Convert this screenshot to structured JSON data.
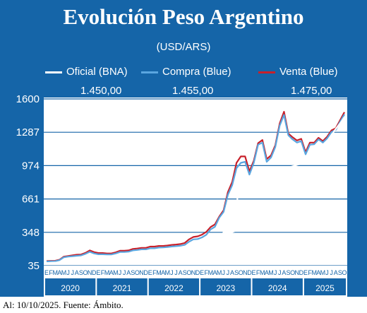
{
  "colors": {
    "background": "#1565a8",
    "oficial": "#ffffff",
    "compra": "#5aa6e0",
    "venta": "#c8202a",
    "years_band": "#1565a8"
  },
  "header": {
    "title": "Evolución Peso Argentino",
    "subtitle": "(USD/ARS)"
  },
  "footer": {
    "source": "Al: 10/10/2025. Fuente: Ámbito."
  },
  "chart_data": {
    "type": "line",
    "title": "Evolución Peso Argentino",
    "subtitle": "(USD/ARS)",
    "ylim": [
      35,
      1600
    ],
    "yticks": [
      35,
      348,
      661,
      974,
      1287,
      1600
    ],
    "grid": true,
    "legend_position": "top",
    "months": [
      "E",
      "F",
      "M",
      "A",
      "M",
      "J",
      "J",
      "A",
      "S",
      "O",
      "N",
      "D"
    ],
    "last_month_index": 69,
    "years": [
      "2020",
      "2021",
      "2022",
      "2023",
      "2024",
      "2025"
    ],
    "annotations": [
      {
        "text": "1.450,00",
        "x": 40
      },
      {
        "text": "1.455,00",
        "x": 52
      },
      {
        "text": "1.475,00",
        "x": 68
      }
    ],
    "series": [
      {
        "name": "Oficial (BNA)",
        "x": [
          0,
          2,
          4,
          6,
          8,
          10,
          12,
          14,
          16,
          18,
          20,
          22,
          24,
          26,
          28,
          30,
          32,
          34,
          36,
          38,
          40,
          41,
          42,
          43,
          44,
          44.3,
          46,
          48,
          50,
          52,
          54,
          56,
          58,
          60,
          61,
          62,
          63,
          64,
          65,
          66,
          67,
          68,
          69
        ],
        "values": [
          60,
          64,
          67,
          73,
          77,
          81,
          87,
          92,
          96,
          99,
          102,
          105,
          108,
          114,
          120,
          128,
          141,
          160,
          182,
          213,
          268,
          350,
          350,
          350,
          365,
          800,
          830,
          855,
          880,
          905,
          930,
          955,
          980,
          1005,
          1030,
          1060,
          1080,
          1130,
          1190,
          1260,
          1320,
          1370,
          1430
        ]
      },
      {
        "name": "Compra (Blue)",
        "x": [
          0,
          1,
          2,
          3,
          4,
          5,
          6,
          7,
          8,
          9,
          10,
          11,
          12,
          13,
          14,
          15,
          16,
          17,
          18,
          19,
          20,
          21,
          22,
          23,
          24,
          25,
          26,
          27,
          28,
          29,
          30,
          31,
          32,
          33,
          34,
          35,
          36,
          37,
          38,
          39,
          40,
          41,
          42,
          43,
          44,
          45,
          46,
          47,
          48,
          49,
          50,
          51,
          52,
          53,
          54,
          55,
          56,
          57,
          58,
          59,
          60,
          61,
          62,
          63,
          64,
          65,
          66,
          67,
          68,
          69
        ],
        "values": [
          74,
          76,
          77,
          87,
          114,
          120,
          124,
          128,
          131,
          146,
          165,
          150,
          142,
          142,
          140,
          140,
          150,
          163,
          163,
          166,
          178,
          182,
          188,
          188,
          198,
          198,
          205,
          206,
          210,
          215,
          218,
          222,
          230,
          260,
          282,
          285,
          300,
          325,
          375,
          400,
          485,
          540,
          700,
          790,
          950,
          1000,
          1010,
          890,
          1000,
          1170,
          1190,
          1010,
          1050,
          1150,
          1350,
          1450,
          1260,
          1220,
          1190,
          1205,
          1080,
          1170,
          1175,
          1220,
          1190,
          1230,
          1290,
          1310,
          1385,
          1455
        ]
      },
      {
        "name": "Venta (Blue)",
        "x": [
          0,
          1,
          2,
          3,
          4,
          5,
          6,
          7,
          8,
          9,
          10,
          11,
          12,
          13,
          14,
          15,
          16,
          17,
          18,
          19,
          20,
          21,
          22,
          23,
          24,
          25,
          26,
          27,
          28,
          29,
          30,
          31,
          32,
          33,
          34,
          35,
          36,
          37,
          38,
          39,
          40,
          41,
          42,
          43,
          44,
          45,
          46,
          47,
          48,
          49,
          50,
          51,
          52,
          53,
          54,
          55,
          56,
          57,
          58,
          59,
          60,
          61,
          62,
          63,
          64,
          65,
          66,
          67,
          68,
          69
        ],
        "values": [
          78,
          80,
          81,
          91,
          120,
          126,
          132,
          138,
          140,
          155,
          178,
          162,
          154,
          154,
          150,
          150,
          160,
          175,
          175,
          178,
          192,
          196,
          202,
          202,
          214,
          214,
          220,
          220,
          224,
          230,
          233,
          238,
          248,
          282,
          304,
          310,
          326,
          352,
          398,
          422,
          495,
          555,
          725,
          820,
          1000,
          1060,
          1060,
          920,
          1020,
          1185,
          1215,
          1035,
          1070,
          1165,
          1370,
          1480,
          1275,
          1240,
          1210,
          1225,
          1100,
          1190,
          1190,
          1235,
          1205,
          1245,
          1305,
          1325,
          1400,
          1475
        ]
      }
    ]
  }
}
